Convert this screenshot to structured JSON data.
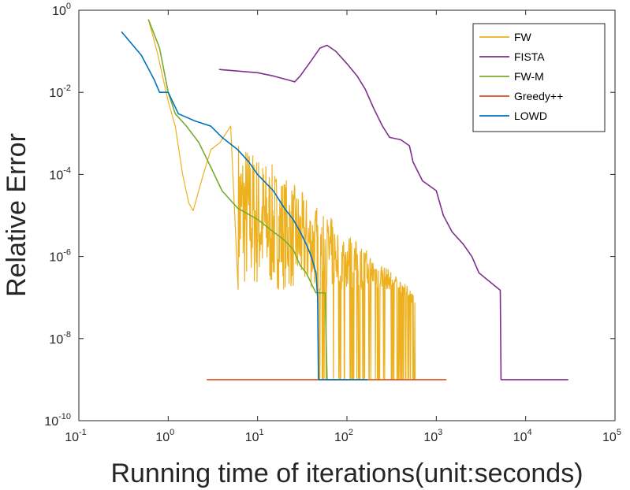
{
  "chart_data": {
    "type": "line",
    "title": "",
    "xlabel": "Running time of iterations(unit:seconds)",
    "ylabel": "Relative Error",
    "xscale": "log",
    "yscale": "log",
    "xlim": [
      0.1,
      100000
    ],
    "ylim": [
      1e-10,
      1
    ],
    "x_ticks": [
      {
        "mantissa": "10",
        "exp": "-1",
        "value": 0.1
      },
      {
        "mantissa": "10",
        "exp": "0",
        "value": 1
      },
      {
        "mantissa": "10",
        "exp": "1",
        "value": 10
      },
      {
        "mantissa": "10",
        "exp": "2",
        "value": 100
      },
      {
        "mantissa": "10",
        "exp": "3",
        "value": 1000
      },
      {
        "mantissa": "10",
        "exp": "4",
        "value": 10000
      },
      {
        "mantissa": "10",
        "exp": "5",
        "value": 100000
      }
    ],
    "y_ticks": [
      {
        "mantissa": "10",
        "exp": "-10",
        "value": 1e-10
      },
      {
        "mantissa": "10",
        "exp": "-8",
        "value": 1e-08
      },
      {
        "mantissa": "10",
        "exp": "-6",
        "value": 1e-06
      },
      {
        "mantissa": "10",
        "exp": "-4",
        "value": 0.0001
      },
      {
        "mantissa": "10",
        "exp": "-2",
        "value": 0.01
      },
      {
        "mantissa": "10",
        "exp": "0",
        "value": 1
      }
    ],
    "grid": false,
    "legend_position": "top-right",
    "series": [
      {
        "name": "FW",
        "color": "#EDB120",
        "noisy_band": {
          "x_range": [
            6,
            580
          ],
          "lower_log": -6.8,
          "upper_log_start": -3.0,
          "upper_log_end": -6.9,
          "floor_dips_to": 1e-09
        },
        "points": [
          [
            0.6,
            0.6
          ],
          [
            0.75,
            0.1
          ],
          [
            1.0,
            0.006
          ],
          [
            1.2,
            0.0015
          ],
          [
            1.45,
            0.0001
          ],
          [
            1.7,
            2e-05
          ],
          [
            1.9,
            1.3e-05
          ],
          [
            2.4,
            8e-05
          ],
          [
            3.0,
            0.0004
          ],
          [
            3.8,
            0.0006
          ],
          [
            5.0,
            0.0015
          ],
          [
            6.5,
            0.002
          ],
          [
            8.5,
            0.002
          ],
          [
            12,
            0.0006
          ],
          [
            20,
            0.00015
          ],
          [
            40,
            2e-05
          ],
          [
            80,
            2e-06
          ],
          [
            150,
            3.5e-07
          ],
          [
            250,
            1.5e-07
          ],
          [
            580,
            1.5e-07
          ]
        ]
      },
      {
        "name": "FISTA",
        "color": "#7E2F8E",
        "points": [
          [
            3.7,
            0.036
          ],
          [
            6,
            0.033
          ],
          [
            10,
            0.03
          ],
          [
            15,
            0.025
          ],
          [
            22,
            0.02
          ],
          [
            26,
            0.018
          ],
          [
            30,
            0.025
          ],
          [
            40,
            0.06
          ],
          [
            50,
            0.12
          ],
          [
            60,
            0.14
          ],
          [
            75,
            0.1
          ],
          [
            100,
            0.05
          ],
          [
            130,
            0.025
          ],
          [
            160,
            0.012
          ],
          [
            200,
            0.004
          ],
          [
            250,
            0.0015
          ],
          [
            300,
            0.0008
          ],
          [
            400,
            0.0007
          ],
          [
            500,
            0.0005
          ],
          [
            550,
            0.0002
          ],
          [
            700,
            7e-05
          ],
          [
            1000,
            4e-05
          ],
          [
            1200,
            1e-05
          ],
          [
            1500,
            4e-06
          ],
          [
            2000,
            2e-06
          ],
          [
            2500,
            1e-06
          ],
          [
            3000,
            4e-07
          ],
          [
            5200,
            1.5e-07
          ],
          [
            5300,
            1e-09
          ],
          [
            30000,
            1e-09
          ]
        ]
      },
      {
        "name": "FW-M",
        "color": "#77AC30",
        "points": [
          [
            0.6,
            0.6
          ],
          [
            0.8,
            0.12
          ],
          [
            1.0,
            0.01
          ],
          [
            1.2,
            0.003
          ],
          [
            1.6,
            0.0015
          ],
          [
            2.2,
            0.0006
          ],
          [
            3.0,
            0.00015
          ],
          [
            4.0,
            4e-05
          ],
          [
            6.0,
            1.5e-05
          ],
          [
            10,
            8e-06
          ],
          [
            15,
            4e-06
          ],
          [
            20,
            2.5e-06
          ],
          [
            25,
            1.5e-06
          ],
          [
            30,
            6e-07
          ],
          [
            35,
            4e-07
          ],
          [
            45,
            1.3e-07
          ],
          [
            57,
            1.3e-07
          ],
          [
            60,
            1e-09
          ],
          [
            100,
            1e-09
          ]
        ]
      },
      {
        "name": "Greedy++",
        "color": "#D95319",
        "points": [
          [
            2.7,
            1e-09
          ],
          [
            1300,
            1e-09
          ]
        ]
      },
      {
        "name": "LOWD",
        "color": "#0072BD",
        "points": [
          [
            0.3,
            0.3
          ],
          [
            0.5,
            0.08
          ],
          [
            0.7,
            0.02
          ],
          [
            0.8,
            0.01
          ],
          [
            1.0,
            0.01
          ],
          [
            1.3,
            0.003
          ],
          [
            2.0,
            0.002
          ],
          [
            3.0,
            0.0015
          ],
          [
            4.0,
            0.0008
          ],
          [
            6.0,
            0.0004
          ],
          [
            8.0,
            0.0002
          ],
          [
            10,
            0.0001
          ],
          [
            15,
            4e-05
          ],
          [
            20,
            1.5e-05
          ],
          [
            25,
            8e-06
          ],
          [
            30,
            4e-06
          ],
          [
            35,
            2e-06
          ],
          [
            40,
            1e-06
          ],
          [
            45,
            4e-07
          ],
          [
            47,
            1e-07
          ],
          [
            48,
            1e-09
          ],
          [
            170,
            1e-09
          ]
        ]
      }
    ]
  }
}
